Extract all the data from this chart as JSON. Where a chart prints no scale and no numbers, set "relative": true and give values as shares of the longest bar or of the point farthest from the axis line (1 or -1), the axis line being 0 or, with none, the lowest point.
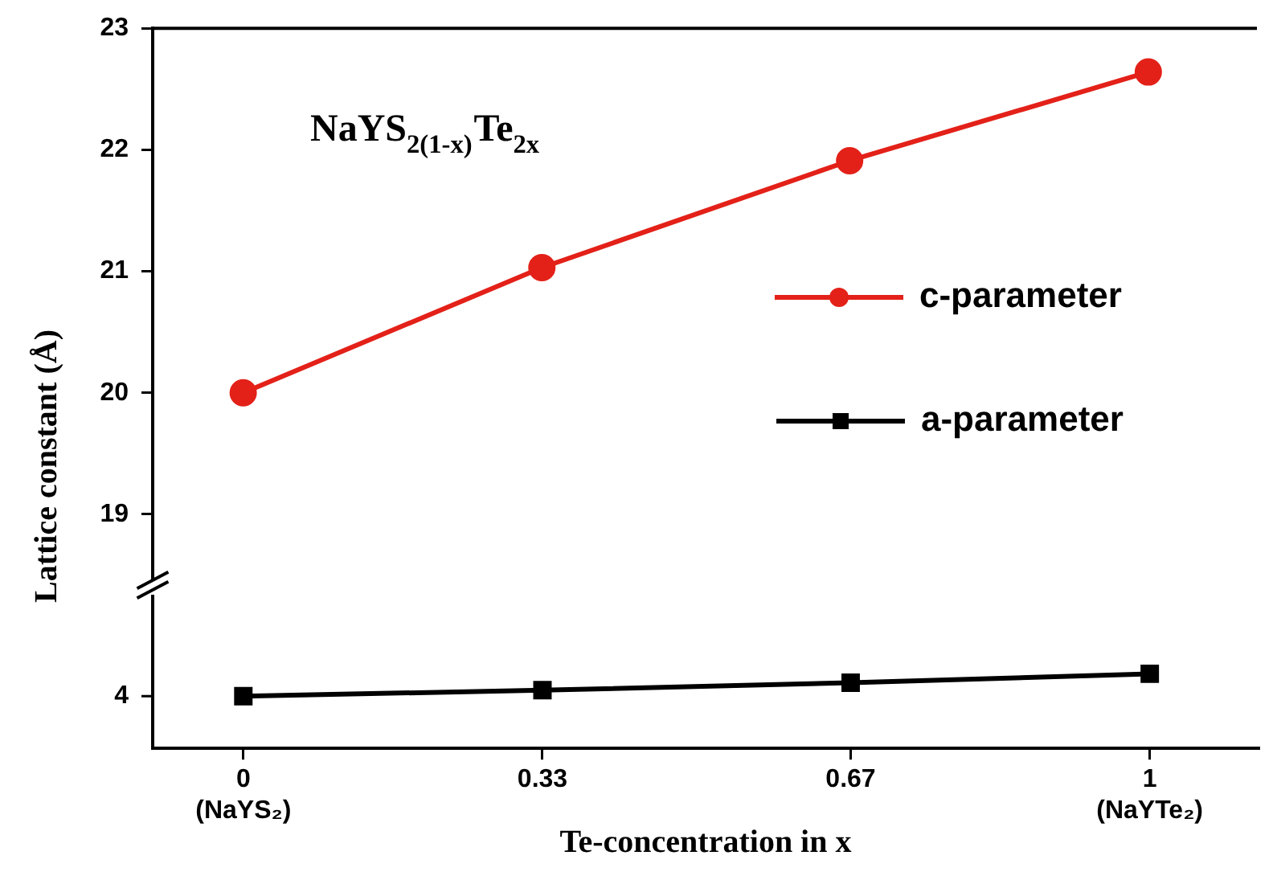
{
  "chart_data": [
    {
      "type": "line",
      "ylabel": "Lattice constant (Å)",
      "annotations": [
        "NaYS$_{2(1-x)}$Te$_{2x}$"
      ],
      "x": [
        0,
        0.33,
        0.67,
        1
      ],
      "xlim": [
        -0.1,
        1.12
      ],
      "ylim": [
        18.47,
        23
      ],
      "yticks": [
        19,
        20,
        21,
        22,
        23
      ],
      "tick_labels": "y",
      "series": [
        {
          "name": "c-parameter",
          "color": "#e32119",
          "values": [
            20.0,
            21.03,
            21.91,
            22.64
          ]
        }
      ],
      "marker": "circle",
      "grid": false,
      "legend": "right"
    },
    {
      "type": "line",
      "relative": true,
      "xlabel": "Te-concentration in x",
      "annotations": [
        "4"
      ],
      "x": [
        0,
        0.33,
        0.67,
        1
      ],
      "xlim": [
        -0.1,
        1.12
      ],
      "xticks": [
        {
          "value": 0,
          "label": "0\n(NaYS₂)"
        },
        0.33,
        0.67,
        {
          "value": 1,
          "label": "1\n(NaYTe₂)"
        }
      ],
      "series": [
        {
          "name": "a-parameter",
          "color": "#000000",
          "values": [
            0.7,
            0.78,
            0.88,
            1
          ]
        }
      ],
      "marker": "square",
      "grid": false,
      "legend": "top right"
    }
  ]
}
